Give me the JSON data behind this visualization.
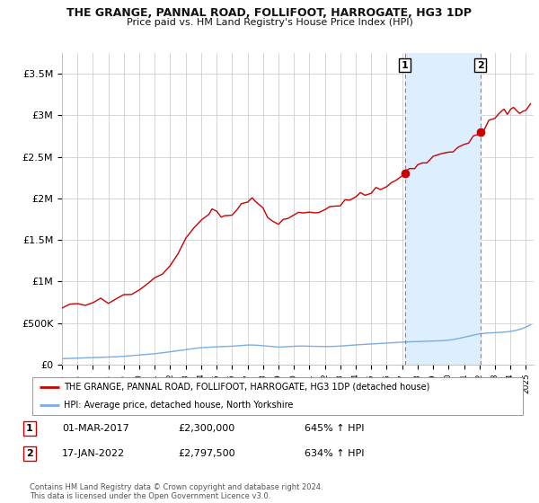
{
  "title": "THE GRANGE, PANNAL ROAD, FOLLIFOOT, HARROGATE, HG3 1DP",
  "subtitle": "Price paid vs. HM Land Registry's House Price Index (HPI)",
  "ylim": [
    0,
    3750000
  ],
  "yticks": [
    0,
    500000,
    1000000,
    1500000,
    2000000,
    2500000,
    3000000,
    3500000
  ],
  "ytick_labels": [
    "£0",
    "£500K",
    "£1M",
    "£1.5M",
    "£2M",
    "£2.5M",
    "£3M",
    "£3.5M"
  ],
  "background_color": "#ffffff",
  "grid_color": "#d0d0d0",
  "red_line_color": "#cc0000",
  "blue_line_color": "#7aade0",
  "dashed_line_color": "#e06060",
  "shade_color": "#ddeeff",
  "marker1_x": 2017.17,
  "marker1_y": 2300000,
  "marker2_x": 2022.05,
  "marker2_y": 2797500,
  "marker1_label": "1",
  "marker2_label": "2",
  "legend_line1": "THE GRANGE, PANNAL ROAD, FOLLIFOOT, HARROGATE, HG3 1DP (detached house)",
  "legend_line2": "HPI: Average price, detached house, North Yorkshire",
  "table_row1": [
    "1",
    "01-MAR-2017",
    "£2,300,000",
    "645% ↑ HPI"
  ],
  "table_row2": [
    "2",
    "17-JAN-2022",
    "£2,797,500",
    "634% ↑ HPI"
  ],
  "footer": "Contains HM Land Registry data © Crown copyright and database right 2024.\nThis data is licensed under the Open Government Licence v3.0.",
  "xmin": 1995,
  "xmax": 2025.5
}
